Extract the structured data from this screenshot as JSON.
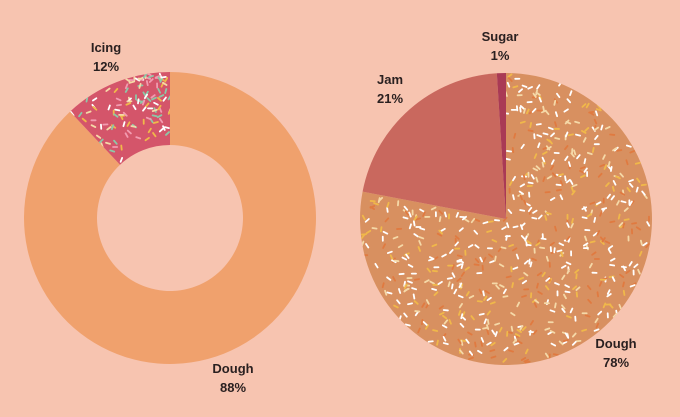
{
  "colors": {
    "background": "#f7c4b0",
    "dough_left": "#f0a16d",
    "icing": "#d4556a",
    "dough_right": "#d89060",
    "jam": "#c9685e",
    "sugar": "#a93a55",
    "sprinkles": [
      "#f5d9a8",
      "#ffffff",
      "#f0b84a",
      "#e07a40",
      "#8cc8a8",
      "#f29bb0"
    ]
  },
  "chart_data": [
    {
      "type": "pie",
      "variant": "donut",
      "title": "",
      "slices": [
        {
          "label": "Icing",
          "value": 12,
          "value_label": "12%"
        },
        {
          "label": "Dough",
          "value": 88,
          "value_label": "88%"
        }
      ]
    },
    {
      "type": "pie",
      "title": "",
      "slices": [
        {
          "label": "Sugar",
          "value": 1,
          "value_label": "1%"
        },
        {
          "label": "Jam",
          "value": 21,
          "value_label": "21%"
        },
        {
          "label": "Dough",
          "value": 78,
          "value_label": "78%"
        }
      ]
    }
  ]
}
